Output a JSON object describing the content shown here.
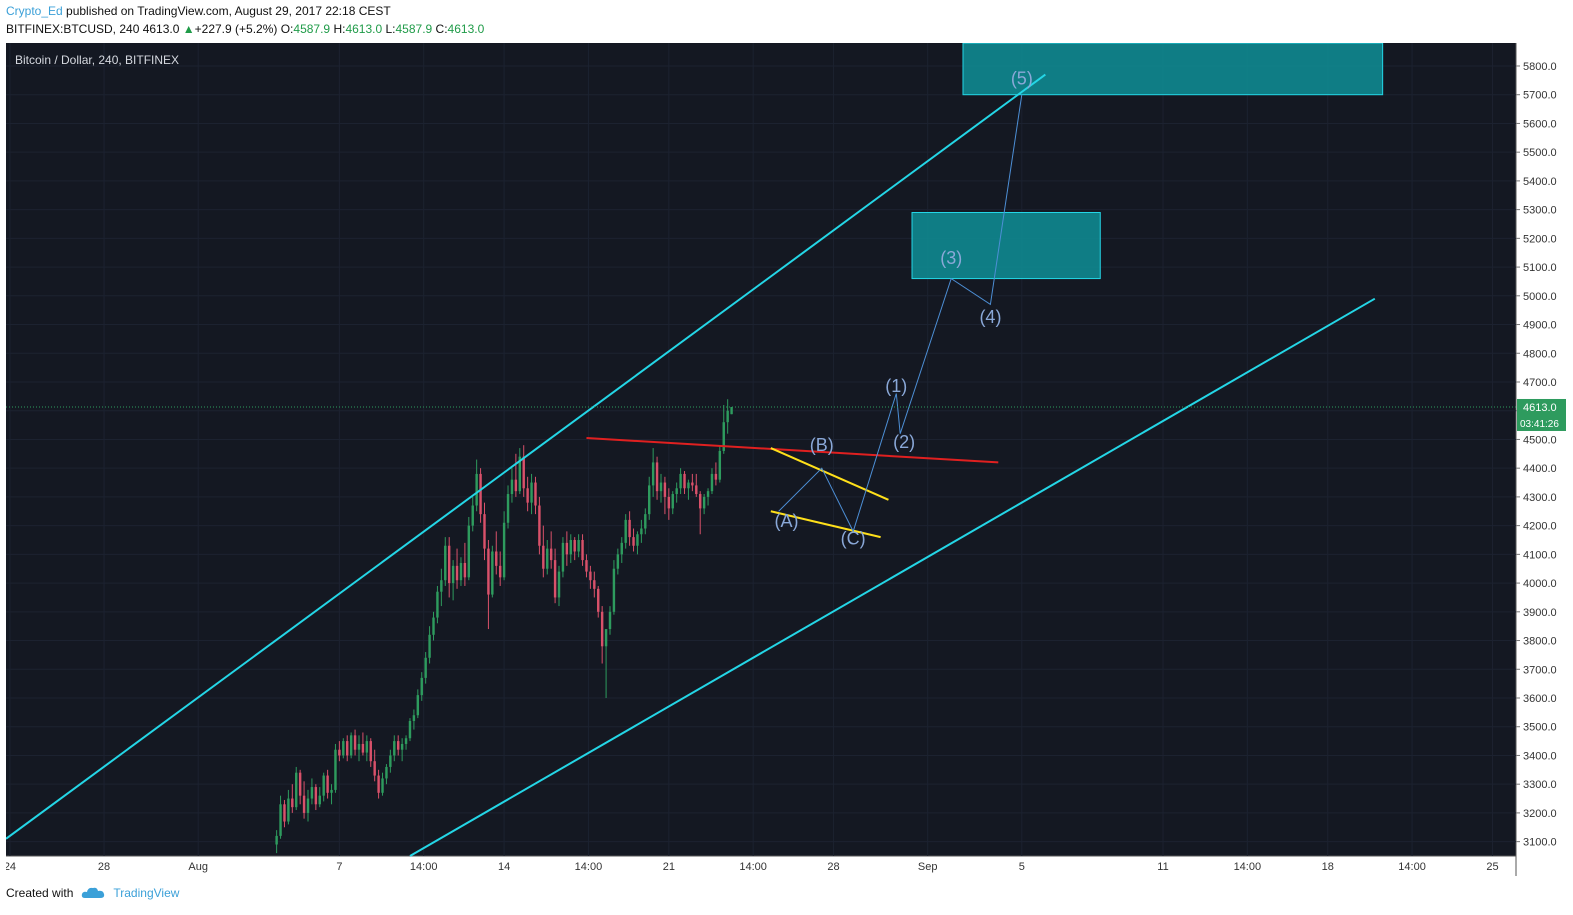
{
  "header": {
    "author": "Crypto_Ed",
    "published_text": " published on TradingView.com, August 29, 2017 22:18 CEST",
    "symbol_text": "BITFINEX:BTCUSD, 240  4613.0",
    "change_arrow": "▲",
    "change_text": "+227.9 (+5.2%)",
    "o_label": "O:",
    "o_value": "4587.9",
    "h_label": "H:",
    "h_value": "4613.0",
    "l_label": "L:",
    "l_value": "4587.9",
    "c_label": "C:",
    "c_value": "4613.0"
  },
  "chart_title": "Bitcoin / Dollar, 240, BITFINEX",
  "footer": {
    "created_with": "Created with",
    "brand": "TradingView",
    "logo_icon": "tradingview-cloud-icon"
  },
  "colors": {
    "background": "#141822",
    "grid": "#1c2230",
    "axis_bg": "#ffffff",
    "axis_text": "#333333",
    "candle_up": "#2e9b5e",
    "candle_down": "#d9516a",
    "channel": "#24d6e6",
    "resistance": "#e02020",
    "wedge": "#ffe01a",
    "wave_path": "#4d8fd6",
    "wave_label": "#8aa8d8",
    "box_fill": "#0e8f96",
    "price_badge": "#2e9b5e",
    "price_line": "#2e9b5e"
  },
  "chart_data": {
    "type": "candlestick",
    "symbol": "BTCUSD",
    "exchange": "BITFINEX",
    "timeframe": "240",
    "ylim": [
      3050,
      5880
    ],
    "y_ticks": [
      "5800.0",
      "5700.0",
      "5600.0",
      "5500.0",
      "5400.0",
      "5300.0",
      "5200.0",
      "5100.0",
      "5000.0",
      "4900.0",
      "4800.0",
      "4700.0",
      "4600.0",
      "4500.0",
      "4400.0",
      "4300.0",
      "4200.0",
      "4100.0",
      "4000.0",
      "3900.0",
      "3800.0",
      "3700.0",
      "3600.0",
      "3500.0",
      "3400.0",
      "3300.0",
      "3200.0",
      "3100.0"
    ],
    "x_range": [
      "2017-07-23T20:00",
      "2017-09-26T00:00"
    ],
    "x_ticks": [
      {
        "label": "24",
        "t": "2017-07-24T00:00"
      },
      {
        "label": "28",
        "t": "2017-07-28T00:00"
      },
      {
        "label": "Aug",
        "t": "2017-08-01T00:00"
      },
      {
        "label": "7",
        "t": "2017-08-07T00:00"
      },
      {
        "label": "14:00",
        "t": "2017-08-10T14:00"
      },
      {
        "label": "14",
        "t": "2017-08-14T00:00"
      },
      {
        "label": "14:00",
        "t": "2017-08-17T14:00"
      },
      {
        "label": "21",
        "t": "2017-08-21T00:00"
      },
      {
        "label": "14:00",
        "t": "2017-08-24T14:00"
      },
      {
        "label": "28",
        "t": "2017-08-28T00:00"
      },
      {
        "label": "Sep",
        "t": "2017-09-01T00:00"
      },
      {
        "label": "5",
        "t": "2017-09-05T00:00"
      },
      {
        "label": "11",
        "t": "2017-09-11T00:00"
      },
      {
        "label": "14:00",
        "t": "2017-09-14T14:00"
      },
      {
        "label": "18",
        "t": "2017-09-18T00:00"
      },
      {
        "label": "14:00",
        "t": "2017-09-21T14:00"
      },
      {
        "label": "25",
        "t": "2017-09-25T00:00"
      }
    ],
    "candle_start": "2017-08-04T08:00",
    "candle_interval_hours": 4,
    "last_price": "4613.0",
    "countdown": "03:41:26",
    "candles": [
      [
        3090,
        3140,
        3060,
        3120
      ],
      [
        3120,
        3260,
        3110,
        3230
      ],
      [
        3230,
        3245,
        3150,
        3170
      ],
      [
        3170,
        3280,
        3160,
        3250
      ],
      [
        3250,
        3300,
        3200,
        3220
      ],
      [
        3220,
        3360,
        3210,
        3340
      ],
      [
        3340,
        3350,
        3230,
        3260
      ],
      [
        3260,
        3310,
        3180,
        3200
      ],
      [
        3200,
        3280,
        3170,
        3250
      ],
      [
        3250,
        3320,
        3230,
        3290
      ],
      [
        3290,
        3300,
        3210,
        3230
      ],
      [
        3230,
        3290,
        3220,
        3260
      ],
      [
        3260,
        3340,
        3240,
        3330
      ],
      [
        3330,
        3350,
        3250,
        3270
      ],
      [
        3270,
        3300,
        3230,
        3280
      ],
      [
        3280,
        3440,
        3270,
        3420
      ],
      [
        3420,
        3450,
        3380,
        3400
      ],
      [
        3400,
        3460,
        3390,
        3450
      ],
      [
        3450,
        3470,
        3380,
        3400
      ],
      [
        3400,
        3480,
        3390,
        3470
      ],
      [
        3470,
        3490,
        3400,
        3420
      ],
      [
        3420,
        3470,
        3380,
        3440
      ],
      [
        3440,
        3480,
        3400,
        3410
      ],
      [
        3410,
        3470,
        3380,
        3450
      ],
      [
        3450,
        3460,
        3360,
        3380
      ],
      [
        3380,
        3420,
        3310,
        3330
      ],
      [
        3330,
        3350,
        3250,
        3270
      ],
      [
        3270,
        3340,
        3260,
        3320
      ],
      [
        3320,
        3370,
        3300,
        3360
      ],
      [
        3360,
        3420,
        3340,
        3400
      ],
      [
        3400,
        3470,
        3380,
        3450
      ],
      [
        3450,
        3470,
        3400,
        3420
      ],
      [
        3420,
        3460,
        3380,
        3440
      ],
      [
        3440,
        3470,
        3420,
        3460
      ],
      [
        3460,
        3530,
        3450,
        3520
      ],
      [
        3520,
        3560,
        3490,
        3540
      ],
      [
        3540,
        3630,
        3530,
        3610
      ],
      [
        3610,
        3690,
        3590,
        3670
      ],
      [
        3670,
        3760,
        3650,
        3740
      ],
      [
        3740,
        3850,
        3720,
        3820
      ],
      [
        3820,
        3900,
        3800,
        3880
      ],
      [
        3880,
        3990,
        3860,
        3970
      ],
      [
        3970,
        4050,
        3920,
        4010
      ],
      [
        4010,
        4160,
        3990,
        4130
      ],
      [
        4130,
        4160,
        3950,
        4000
      ],
      [
        4000,
        4080,
        3940,
        4060
      ],
      [
        4060,
        4120,
        3980,
        4010
      ],
      [
        4010,
        4090,
        3990,
        4070
      ],
      [
        4070,
        4140,
        3990,
        4020
      ],
      [
        4020,
        4230,
        4010,
        4200
      ],
      [
        4200,
        4300,
        4180,
        4270
      ],
      [
        4270,
        4430,
        4250,
        4380
      ],
      [
        4380,
        4400,
        4210,
        4240
      ],
      [
        4240,
        4280,
        4080,
        4120
      ],
      [
        4120,
        4150,
        3840,
        3960
      ],
      [
        3960,
        4130,
        3950,
        4110
      ],
      [
        4110,
        4180,
        4030,
        4060
      ],
      [
        4060,
        4110,
        3990,
        4020
      ],
      [
        4020,
        4250,
        4010,
        4210
      ],
      [
        4210,
        4340,
        4190,
        4310
      ],
      [
        4310,
        4400,
        4280,
        4360
      ],
      [
        4360,
        4450,
        4300,
        4320
      ],
      [
        4320,
        4470,
        4310,
        4440
      ],
      [
        4440,
        4480,
        4300,
        4330
      ],
      [
        4330,
        4370,
        4250,
        4280
      ],
      [
        4280,
        4380,
        4240,
        4350
      ],
      [
        4350,
        4370,
        4240,
        4270
      ],
      [
        4270,
        4300,
        4100,
        4130
      ],
      [
        4130,
        4200,
        4020,
        4050
      ],
      [
        4050,
        4150,
        4030,
        4120
      ],
      [
        4120,
        4180,
        4050,
        4080
      ],
      [
        4080,
        4120,
        3930,
        3950
      ],
      [
        3950,
        4060,
        3920,
        4040
      ],
      [
        4040,
        4160,
        4020,
        4140
      ],
      [
        4140,
        4180,
        4060,
        4100
      ],
      [
        4100,
        4170,
        4070,
        4150
      ],
      [
        4150,
        4160,
        4080,
        4110
      ],
      [
        4110,
        4170,
        4090,
        4150
      ],
      [
        4150,
        4170,
        4060,
        4080
      ],
      [
        4080,
        4100,
        4020,
        4040
      ],
      [
        4040,
        4060,
        3980,
        4010
      ],
      [
        4010,
        4040,
        3950,
        3980
      ],
      [
        3980,
        3990,
        3880,
        3900
      ],
      [
        3900,
        3920,
        3720,
        3780
      ],
      [
        3780,
        3820,
        3600,
        3840
      ],
      [
        3840,
        3920,
        3820,
        3900
      ],
      [
        3900,
        4080,
        3890,
        4050
      ],
      [
        4050,
        4120,
        4030,
        4100
      ],
      [
        4100,
        4160,
        4070,
        4140
      ],
      [
        4140,
        4240,
        4120,
        4220
      ],
      [
        4220,
        4250,
        4130,
        4160
      ],
      [
        4160,
        4190,
        4110,
        4130
      ],
      [
        4130,
        4180,
        4100,
        4170
      ],
      [
        4170,
        4220,
        4140,
        4190
      ],
      [
        4190,
        4260,
        4170,
        4240
      ],
      [
        4240,
        4370,
        4220,
        4340
      ],
      [
        4340,
        4470,
        4300,
        4420
      ],
      [
        4420,
        4440,
        4290,
        4320
      ],
      [
        4320,
        4380,
        4280,
        4350
      ],
      [
        4350,
        4370,
        4240,
        4300
      ],
      [
        4300,
        4330,
        4220,
        4260
      ],
      [
        4260,
        4320,
        4240,
        4310
      ],
      [
        4310,
        4350,
        4280,
        4330
      ],
      [
        4330,
        4400,
        4310,
        4380
      ],
      [
        4380,
        4390,
        4310,
        4330
      ],
      [
        4330,
        4360,
        4290,
        4350
      ],
      [
        4350,
        4380,
        4320,
        4340
      ],
      [
        4340,
        4380,
        4300,
        4310
      ],
      [
        4310,
        4320,
        4170,
        4260
      ],
      [
        4260,
        4310,
        4240,
        4300
      ],
      [
        4300,
        4330,
        4270,
        4320
      ],
      [
        4320,
        4400,
        4310,
        4380
      ],
      [
        4380,
        4420,
        4340,
        4360
      ],
      [
        4360,
        4480,
        4350,
        4460
      ],
      [
        4460,
        4620,
        4450,
        4560
      ],
      [
        4560,
        4640,
        4520,
        4600
      ],
      [
        4587.9,
        4613,
        4587.9,
        4613
      ]
    ],
    "annotations": {
      "upper_channel": {
        "t1": "2017-07-23T20:00",
        "p1": 3110,
        "t2": "2017-09-06T00:00",
        "p2": 5770
      },
      "lower_channel": {
        "t1": "2017-08-10T00:00",
        "p1": 3050,
        "t2": "2017-09-20T00:00",
        "p2": 4990
      },
      "resistance": {
        "t1": "2017-08-17T12:00",
        "p1": 4505,
        "t2": "2017-09-04T00:00",
        "p2": 4420
      },
      "wedge_upper": {
        "t1": "2017-08-25T08:00",
        "p1": 4470,
        "t2": "2017-08-30T08:00",
        "p2": 4290
      },
      "wedge_lower": {
        "t1": "2017-08-25T08:00",
        "p1": 4250,
        "t2": "2017-08-30T00:00",
        "p2": 4160
      },
      "target_boxes": [
        {
          "t1": "2017-08-31T08:00",
          "p1": 5290,
          "t2": "2017-09-08T08:00",
          "p2": 5060
        },
        {
          "t1": "2017-09-02T12:00",
          "p1": 5880,
          "t2": "2017-09-20T08:00",
          "p2": 5700
        }
      ],
      "waves": [
        {
          "label": "(A)",
          "t": "2017-08-26T00:00",
          "p": 4195,
          "pt": "2017-08-26T00:00",
          "pp": 4250
        },
        {
          "label": "(B)",
          "t": "2017-08-27T12:00",
          "p": 4460,
          "pt": "2017-08-27T12:00",
          "pp": 4400
        },
        {
          "label": "(C)",
          "t": "2017-08-28T20:00",
          "p": 4135,
          "pt": "2017-08-28T20:00",
          "pp": 4180
        },
        {
          "label": "(1)",
          "t": "2017-08-30T16:00",
          "p": 4665,
          "pt": "2017-08-30T16:00",
          "pp": 4660
        },
        {
          "label": "(2)",
          "t": "2017-08-31T00:00",
          "p": 4470,
          "pt": "2017-08-30T16:00",
          "pp": 4520
        },
        {
          "label": "(3)",
          "t": "2017-09-02T00:00",
          "p": 5110,
          "pt": "2017-09-02T00:00",
          "pp": 5060
        },
        {
          "label": "(4)",
          "t": "2017-09-03T16:00",
          "p": 4905,
          "pt": "2017-09-03T16:00",
          "pp": 4970
        },
        {
          "label": "(5)",
          "t": "2017-09-05T00:00",
          "p": 5735,
          "pt": "2017-09-05T00:00",
          "pp": 5700
        }
      ],
      "wave_path": [
        {
          "t": "2017-08-25T16:00",
          "p": 4250
        },
        {
          "t": "2017-08-27T12:00",
          "p": 4400
        },
        {
          "t": "2017-08-28T20:00",
          "p": 4180
        },
        {
          "t": "2017-08-30T16:00",
          "p": 4660
        },
        {
          "t": "2017-08-30T20:00",
          "p": 4520
        },
        {
          "t": "2017-09-02T00:00",
          "p": 5060
        },
        {
          "t": "2017-09-03T16:00",
          "p": 4970
        },
        {
          "t": "2017-09-05T00:00",
          "p": 5700
        }
      ]
    }
  }
}
